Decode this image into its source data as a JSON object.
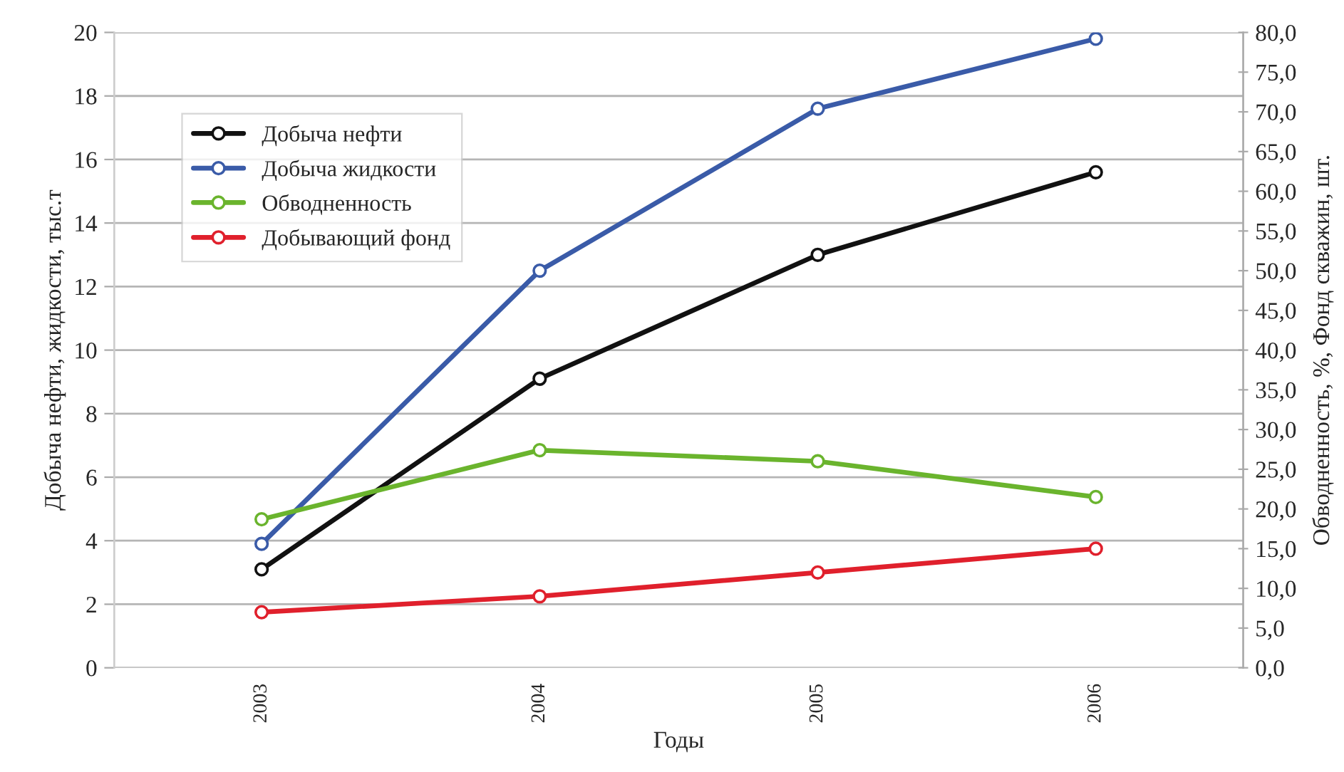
{
  "chart_data": {
    "type": "line",
    "xlabel": "Годы",
    "ylabel": "Добыча нефти, жидкости, тыс.т",
    "y2label": "Обводненность, %, Фонд скважин, шт.",
    "categories": [
      "2003",
      "2004",
      "2005",
      "2006"
    ],
    "series": [
      {
        "name": "Добыча нефти",
        "color": "#111111",
        "values": [
          3.1,
          9.1,
          13.0,
          15.6
        ]
      },
      {
        "name": "Добыча жидкости",
        "color": "#3a5ba8",
        "values": [
          3.9,
          12.5,
          17.6,
          19.8
        ]
      },
      {
        "name": "Обводненность",
        "color": "#6ab42d",
        "values": [
          18.7,
          27.4,
          26.0,
          21.5
        ],
        "axis": "y2"
      },
      {
        "name": "Добывающий фонд",
        "color": "#e0202c",
        "values": [
          7,
          9,
          12,
          15
        ],
        "axis": "y2"
      }
    ],
    "ylim": [
      0,
      20
    ],
    "yticks": [
      0,
      2,
      4,
      6,
      8,
      10,
      12,
      14,
      16,
      18,
      20
    ],
    "y2lim": [
      0,
      80
    ],
    "y2ticks": [
      {
        "value": 0,
        "label": "0,0"
      },
      {
        "value": 5,
        "label": "5,0"
      },
      {
        "value": 10,
        "label": "10,0"
      },
      {
        "value": 15,
        "label": "15,0"
      },
      {
        "value": 20,
        "label": "20,0"
      },
      {
        "value": 25,
        "label": "25,0"
      },
      {
        "value": 30,
        "label": "30,0"
      },
      {
        "value": 35,
        "label": "35,0"
      },
      {
        "value": 40,
        "label": "40,0"
      },
      {
        "value": 45,
        "label": "45,0"
      },
      {
        "value": 50,
        "label": "50,0"
      },
      {
        "value": 55,
        "label": "55,0"
      },
      {
        "value": 60,
        "label": "60,0"
      },
      {
        "value": 65,
        "label": "65,0"
      },
      {
        "value": 70,
        "label": "70,0"
      },
      {
        "value": 75,
        "label": "75,0"
      },
      {
        "value": 80,
        "label": "80,0"
      }
    ],
    "grid": "y",
    "legend": "top left",
    "marker": "circle",
    "line_style": "solid"
  }
}
